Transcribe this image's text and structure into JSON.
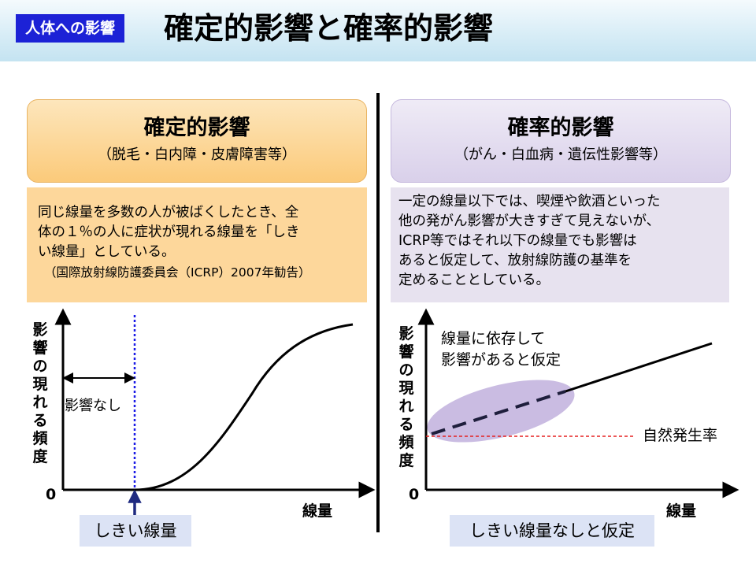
{
  "header": {
    "tag": "人体への影響",
    "title": "確定的影響と確率的影響"
  },
  "left": {
    "category_title": "確定的影響",
    "category_sub": "（脱毛・白内障・皮膚障害等）",
    "description": [
      "同じ線量を多数の人が被ばくしたとき、全",
      "体の１％の人に症状が現れる線量を「しき",
      "い線量」としている。"
    ],
    "citation": "（国際放射線防護委員会（ICRP）2007年勧告）",
    "chart": {
      "ylabel": "影響の現れる頻度",
      "xlabel": "線量",
      "origin": "0",
      "no_effect_label": "影響なし",
      "threshold_label": "しきい線量"
    }
  },
  "right": {
    "category_title": "確率的影響",
    "category_sub": "（がん・白血病・遺伝性影響等）",
    "description": [
      "一定の線量以下では、喫煙や飲酒といった",
      "他の発がん影響が大きすぎて見えないが、",
      "ICRP等ではそれ以下の線量でも影響は",
      "あると仮定して、放射線防護の基準を",
      "定めることとしている。"
    ],
    "chart": {
      "ylabel": "影響の現れる頻度",
      "xlabel": "線量",
      "origin": "0",
      "assumption_label_1": "線量に依存して",
      "assumption_label_2": "影響があると仮定",
      "natural_rate_label": "自然発生率",
      "note": "しきい線量なしと仮定"
    }
  },
  "colors": {
    "tag_bg": "#1c22d6",
    "threshold_line": "#1a1ae6",
    "natural_rate_line": "#e52020",
    "ellipse_fill": "#b8a6d8",
    "left_box": "#fbca7a",
    "right_box": "#d9d0ea"
  }
}
